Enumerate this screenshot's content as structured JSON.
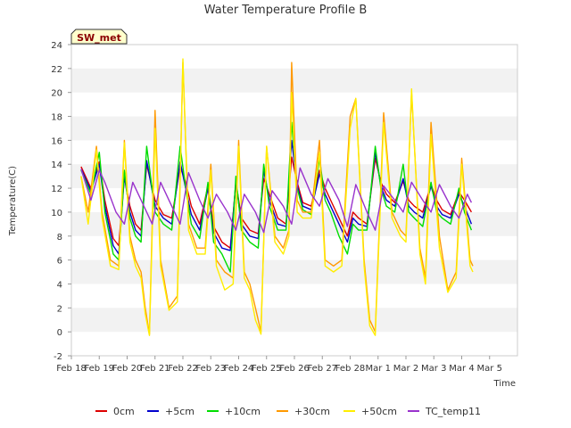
{
  "chart_data": {
    "type": "line",
    "title": "Water Temperature Profile B",
    "xlabel": "Time",
    "ylabel": "Temperature(C)",
    "badge": "SW_met",
    "xlim": [
      0,
      16
    ],
    "ylim": [
      -2,
      24
    ],
    "y_ticks": [
      -2,
      0,
      2,
      4,
      6,
      8,
      10,
      12,
      14,
      16,
      18,
      20,
      22,
      24
    ],
    "x_ticks": [
      {
        "value": 0,
        "label": "Feb 18"
      },
      {
        "value": 1,
        "label": "Feb 19"
      },
      {
        "value": 2,
        "label": "Feb 20"
      },
      {
        "value": 3,
        "label": "Feb 21"
      },
      {
        "value": 4,
        "label": "Feb 22"
      },
      {
        "value": 5,
        "label": "Feb 23"
      },
      {
        "value": 6,
        "label": "Feb 24"
      },
      {
        "value": 7,
        "label": "Feb 25"
      },
      {
        "value": 8,
        "label": "Feb 26"
      },
      {
        "value": 9,
        "label": "Feb 27"
      },
      {
        "value": 10,
        "label": "Feb 28"
      },
      {
        "value": 11,
        "label": "Mar 1"
      },
      {
        "value": 12,
        "label": "Mar 2"
      },
      {
        "value": 13,
        "label": "Mar 3"
      },
      {
        "value": 14,
        "label": "Mar 4"
      },
      {
        "value": 15,
        "label": "Mar 5"
      }
    ],
    "grid": "horizontal bands",
    "legend_position": "bottom",
    "series": [
      {
        "name": "0cm",
        "color": "#dd0000",
        "x": [
          0.35,
          0.7,
          1.0,
          1.2,
          1.5,
          1.7,
          1.9,
          2.1,
          2.3,
          2.5,
          2.7,
          3.0,
          3.3,
          3.6,
          3.9,
          4.1,
          4.3,
          4.6,
          4.9,
          5.1,
          5.4,
          5.7,
          5.9,
          6.1,
          6.4,
          6.7,
          6.9,
          7.1,
          7.4,
          7.7,
          7.9,
          8.1,
          8.3,
          8.6,
          8.9,
          9.1,
          9.3,
          9.6,
          9.9,
          10.1,
          10.3,
          10.6,
          10.9,
          11.1,
          11.3,
          11.6,
          11.9,
          12.1,
          12.3,
          12.6,
          12.9,
          13.1,
          13.3,
          13.6,
          13.9,
          14.1,
          14.35
        ],
        "y": [
          13.8,
          12.0,
          14.2,
          11.0,
          7.8,
          7.2,
          13.0,
          10.5,
          9.0,
          8.5,
          14.0,
          11.0,
          9.8,
          9.5,
          13.8,
          12.5,
          10.5,
          9.0,
          12.2,
          8.8,
          7.5,
          7.0,
          12.5,
          9.5,
          8.5,
          8.2,
          12.8,
          11.5,
          9.5,
          9.0,
          14.6,
          12.5,
          10.8,
          10.5,
          13.5,
          12.0,
          11.0,
          9.5,
          8.0,
          10.0,
          9.5,
          9.0,
          14.5,
          12.5,
          11.5,
          10.8,
          12.6,
          11.0,
          10.5,
          10.0,
          12.3,
          11.0,
          10.2,
          9.8,
          11.7,
          11.0,
          10.0
        ]
      },
      {
        "name": "+5cm",
        "color": "#0000cc",
        "x": [
          0.35,
          0.7,
          1.0,
          1.2,
          1.5,
          1.7,
          1.9,
          2.1,
          2.3,
          2.5,
          2.7,
          3.0,
          3.3,
          3.6,
          3.9,
          4.1,
          4.3,
          4.6,
          4.9,
          5.1,
          5.4,
          5.7,
          5.9,
          6.1,
          6.4,
          6.7,
          6.9,
          7.1,
          7.4,
          7.7,
          7.9,
          8.1,
          8.3,
          8.6,
          8.9,
          9.1,
          9.3,
          9.6,
          9.9,
          10.1,
          10.3,
          10.6,
          10.9,
          11.1,
          11.3,
          11.6,
          11.9,
          12.1,
          12.3,
          12.6,
          12.9,
          13.1,
          13.3,
          13.6,
          13.9,
          14.1,
          14.35
        ],
        "y": [
          13.6,
          11.8,
          14.0,
          10.5,
          7.2,
          6.5,
          13.0,
          10.0,
          8.5,
          8.0,
          14.3,
          10.5,
          9.5,
          9.0,
          14.2,
          12.0,
          9.8,
          8.5,
          12.0,
          8.3,
          7.0,
          6.8,
          12.5,
          9.0,
          8.0,
          7.8,
          13.5,
          11.0,
          9.0,
          8.8,
          16.0,
          12.2,
          10.5,
          10.2,
          13.2,
          11.5,
          10.5,
          9.0,
          7.5,
          9.5,
          9.0,
          8.8,
          15.0,
          12.2,
          11.0,
          10.5,
          12.8,
          10.5,
          10.0,
          9.5,
          12.2,
          10.5,
          9.8,
          9.5,
          11.5,
          10.5,
          9.0
        ]
      },
      {
        "name": "+10cm",
        "color": "#00dd00",
        "x": [
          0.35,
          0.7,
          1.0,
          1.2,
          1.5,
          1.7,
          1.9,
          2.1,
          2.3,
          2.5,
          2.7,
          3.0,
          3.3,
          3.6,
          3.9,
          4.1,
          4.3,
          4.6,
          4.9,
          5.1,
          5.4,
          5.7,
          5.9,
          6.1,
          6.4,
          6.7,
          6.9,
          7.1,
          7.4,
          7.7,
          7.9,
          8.1,
          8.3,
          8.6,
          8.9,
          9.1,
          9.3,
          9.6,
          9.9,
          10.1,
          10.3,
          10.6,
          10.9,
          11.1,
          11.3,
          11.6,
          11.9,
          12.1,
          12.3,
          12.6,
          12.9,
          13.1,
          13.3,
          13.6,
          13.9,
          14.1,
          14.35
        ],
        "y": [
          13.5,
          11.5,
          15.0,
          10.0,
          6.5,
          6.0,
          13.5,
          9.5,
          8.0,
          7.5,
          15.5,
          10.0,
          9.0,
          8.5,
          15.5,
          12.0,
          9.0,
          7.8,
          12.5,
          7.5,
          6.5,
          5.0,
          13.0,
          8.5,
          7.5,
          7.0,
          14.0,
          10.5,
          8.5,
          8.5,
          17.5,
          12.0,
          10.2,
          9.8,
          14.5,
          11.0,
          10.0,
          8.0,
          6.5,
          9.0,
          8.5,
          8.5,
          15.5,
          12.0,
          10.5,
          10.0,
          14.0,
          10.0,
          9.5,
          8.8,
          12.5,
          10.0,
          9.5,
          9.0,
          12.0,
          10.0,
          8.5
        ]
      },
      {
        "name": "+30cm",
        "color": "#ff9900",
        "x": [
          0.35,
          0.6,
          0.9,
          1.1,
          1.4,
          1.7,
          1.9,
          2.1,
          2.3,
          2.5,
          2.65,
          2.8,
          3.0,
          3.2,
          3.5,
          3.8,
          4.0,
          4.2,
          4.5,
          4.8,
          5.0,
          5.2,
          5.5,
          5.8,
          6.0,
          6.2,
          6.4,
          6.6,
          6.8,
          7.0,
          7.3,
          7.6,
          7.8,
          7.9,
          8.1,
          8.3,
          8.6,
          8.9,
          9.1,
          9.4,
          9.7,
          10.0,
          10.2,
          10.5,
          10.7,
          10.9,
          11.2,
          11.5,
          11.8,
          12.0,
          12.2,
          12.5,
          12.7,
          12.9,
          13.2,
          13.5,
          13.8,
          14.0,
          14.3,
          14.4
        ],
        "y": [
          13.0,
          10.0,
          15.5,
          10.0,
          6.0,
          5.5,
          16.0,
          8.0,
          6.0,
          5.0,
          2.0,
          -0.2,
          18.5,
          6.0,
          2.0,
          3.0,
          22.5,
          9.0,
          7.0,
          7.0,
          14.0,
          6.0,
          5.0,
          4.5,
          16.0,
          5.0,
          4.0,
          2.0,
          0.0,
          15.5,
          8.0,
          7.0,
          8.5,
          22.5,
          11.0,
          10.0,
          10.0,
          16.0,
          6.0,
          5.5,
          6.0,
          18.0,
          19.5,
          6.0,
          1.0,
          0.0,
          18.3,
          10.0,
          8.5,
          8.0,
          20.0,
          7.0,
          4.5,
          17.5,
          8.0,
          3.5,
          5.0,
          14.5,
          6.0,
          5.5
        ]
      },
      {
        "name": "+50cm",
        "color": "#ffee00",
        "x": [
          0.35,
          0.6,
          0.9,
          1.1,
          1.4,
          1.7,
          1.9,
          2.1,
          2.3,
          2.5,
          2.65,
          2.8,
          3.0,
          3.2,
          3.5,
          3.8,
          4.0,
          4.2,
          4.5,
          4.8,
          5.0,
          5.2,
          5.5,
          5.8,
          6.0,
          6.2,
          6.4,
          6.6,
          6.8,
          7.0,
          7.3,
          7.6,
          7.8,
          7.9,
          8.1,
          8.3,
          8.6,
          8.9,
          9.1,
          9.4,
          9.7,
          10.0,
          10.2,
          10.5,
          10.7,
          10.9,
          11.2,
          11.5,
          11.8,
          12.0,
          12.2,
          12.5,
          12.7,
          12.9,
          13.2,
          13.5,
          13.8,
          14.0,
          14.3,
          14.4
        ],
        "y": [
          13.0,
          9.0,
          15.2,
          9.5,
          5.5,
          5.2,
          15.8,
          7.5,
          5.5,
          4.5,
          1.5,
          -0.3,
          17.0,
          5.5,
          1.8,
          2.5,
          22.8,
          8.5,
          6.5,
          6.5,
          13.5,
          5.5,
          3.5,
          4.0,
          15.5,
          4.5,
          3.5,
          1.0,
          -0.2,
          15.5,
          7.5,
          6.5,
          8.0,
          20.0,
          10.0,
          9.5,
          9.5,
          15.0,
          5.5,
          5.0,
          5.5,
          17.0,
          19.5,
          5.5,
          0.5,
          -0.3,
          17.5,
          9.5,
          8.0,
          7.5,
          20.3,
          6.5,
          4.0,
          16.5,
          7.0,
          3.3,
          4.5,
          14.0,
          5.5,
          5.0
        ]
      },
      {
        "name": "TC_temp11",
        "color": "#9933cc",
        "x": [
          0.35,
          0.7,
          1.0,
          1.2,
          1.6,
          1.9,
          2.2,
          2.6,
          2.9,
          3.2,
          3.6,
          3.9,
          4.2,
          4.6,
          4.9,
          5.2,
          5.6,
          5.9,
          6.2,
          6.6,
          6.9,
          7.2,
          7.6,
          7.9,
          8.2,
          8.6,
          8.9,
          9.2,
          9.6,
          9.9,
          10.2,
          10.6,
          10.9,
          11.2,
          11.6,
          11.9,
          12.2,
          12.6,
          12.9,
          13.2,
          13.6,
          13.9,
          14.2,
          14.35
        ],
        "y": [
          13.6,
          11.0,
          13.5,
          12.5,
          10.0,
          9.0,
          12.5,
          10.5,
          9.0,
          12.5,
          10.5,
          9.0,
          13.3,
          11.0,
          9.5,
          11.5,
          10.0,
          8.5,
          11.5,
          10.0,
          8.3,
          11.8,
          10.5,
          9.0,
          13.7,
          11.5,
          10.5,
          12.8,
          11.0,
          8.8,
          12.3,
          10.0,
          8.5,
          12.2,
          11.0,
          10.0,
          12.5,
          11.0,
          10.0,
          12.3,
          10.5,
          9.5,
          11.5,
          10.8
        ]
      }
    ]
  }
}
